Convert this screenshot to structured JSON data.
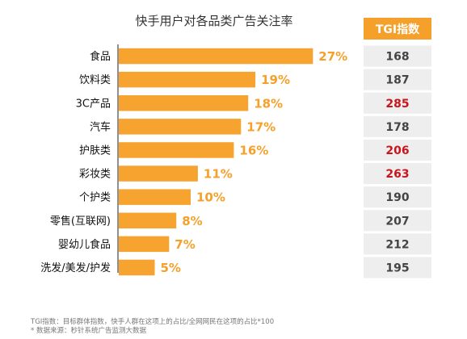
{
  "chart_data": {
    "type": "bar",
    "orientation": "horizontal",
    "title": "快手用户对各品类广告关注率",
    "categories": [
      "食品",
      "饮料类",
      "3C产品",
      "汽车",
      "护肤类",
      "彩妆类",
      "个护类",
      "零售(互联网)",
      "婴幼儿食品",
      "洗发/美发/护发"
    ],
    "values": [
      27,
      19,
      18,
      17,
      16,
      11,
      10,
      8,
      7,
      5
    ],
    "value_labels": [
      "27%",
      "19%",
      "18%",
      "17%",
      "16%",
      "11%",
      "10%",
      "8%",
      "7%",
      "5%"
    ],
    "xlim": [
      0,
      30
    ],
    "grid": false,
    "tgi": {
      "header": "TGI指数",
      "values": [
        168,
        187,
        285,
        178,
        206,
        263,
        190,
        207,
        212,
        195
      ],
      "labels": [
        "168",
        "187",
        "285",
        "178",
        "206",
        "263",
        "190",
        "207",
        "212",
        "195"
      ],
      "highlight": [
        false,
        false,
        true,
        false,
        true,
        true,
        false,
        false,
        false,
        false
      ]
    }
  },
  "footnotes": {
    "line1": "TGI指数：目标群体指数，快手人群在这项上的占比/全网网民在这项的占比*100",
    "line2": "*    数据来源：秒针系统广告监测大数据"
  },
  "colors": {
    "bar": "#f7a330",
    "value_label": "#f5a02a",
    "tgi_header_bg": "#f5a02a",
    "tgi_cell_bg": "#eeeeee",
    "tgi_normal": "#444444",
    "tgi_highlight": "#c8161d"
  }
}
